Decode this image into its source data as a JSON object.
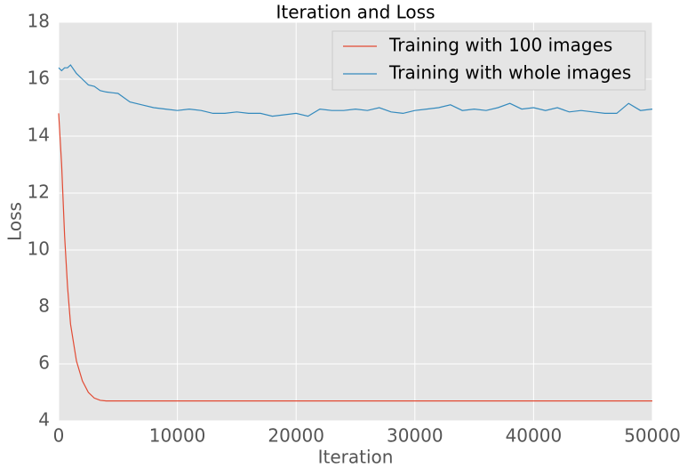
{
  "chart_data": {
    "type": "line",
    "title": "Iteration and Loss",
    "xlabel": "Iteration",
    "ylabel": "Loss",
    "x": [
      0,
      250,
      500,
      750,
      1000,
      1500,
      2000,
      2500,
      3000,
      3500,
      4000,
      5000,
      6000,
      7000,
      8000,
      9000,
      10000,
      11000,
      12000,
      13000,
      14000,
      15000,
      16000,
      17000,
      18000,
      19000,
      20000,
      21000,
      22000,
      23000,
      24000,
      25000,
      26000,
      27000,
      28000,
      29000,
      30000,
      31000,
      32000,
      33000,
      34000,
      35000,
      36000,
      37000,
      38000,
      39000,
      40000,
      41000,
      42000,
      43000,
      44000,
      45000,
      46000,
      47000,
      48000,
      49000,
      50000
    ],
    "series": [
      {
        "name": "Training with 100 images",
        "color": "#E24A33",
        "values": [
          14.8,
          13.0,
          10.5,
          8.7,
          7.4,
          6.1,
          5.4,
          5.0,
          4.8,
          4.72,
          4.7,
          4.7,
          4.7,
          4.7,
          4.7,
          4.7,
          4.7,
          4.7,
          4.7,
          4.7,
          4.7,
          4.7,
          4.7,
          4.7,
          4.7,
          4.7,
          4.7,
          4.7,
          4.7,
          4.7,
          4.7,
          4.7,
          4.7,
          4.7,
          4.7,
          4.7,
          4.7,
          4.7,
          4.7,
          4.7,
          4.7,
          4.7,
          4.7,
          4.7,
          4.7,
          4.7,
          4.7,
          4.7,
          4.7,
          4.7,
          4.7,
          4.7,
          4.7,
          4.7,
          4.7,
          4.7,
          4.7
        ]
      },
      {
        "name": "Training with whole images",
        "color": "#348ABD",
        "values": [
          16.4,
          16.3,
          16.4,
          16.4,
          16.5,
          16.2,
          16.0,
          15.8,
          15.75,
          15.6,
          15.55,
          15.5,
          15.2,
          15.1,
          15.0,
          14.95,
          14.9,
          14.95,
          14.9,
          14.8,
          14.8,
          14.85,
          14.8,
          14.8,
          14.7,
          14.75,
          14.8,
          14.7,
          14.95,
          14.9,
          14.9,
          14.95,
          14.9,
          15.0,
          14.85,
          14.8,
          14.9,
          14.95,
          15.0,
          15.1,
          14.9,
          14.95,
          14.9,
          15.0,
          15.15,
          14.95,
          15.0,
          14.9,
          15.0,
          14.85,
          14.9,
          14.85,
          14.8,
          14.8,
          15.15,
          14.9,
          14.95
        ]
      }
    ],
    "xlim": [
      0,
      50000
    ],
    "ylim": [
      4,
      18
    ],
    "xticks": [
      0,
      10000,
      20000,
      30000,
      40000,
      50000
    ],
    "yticks": [
      4,
      6,
      8,
      10,
      12,
      14,
      16,
      18
    ],
    "grid": true,
    "legend": "upper right",
    "background": "#E5E5E5"
  }
}
